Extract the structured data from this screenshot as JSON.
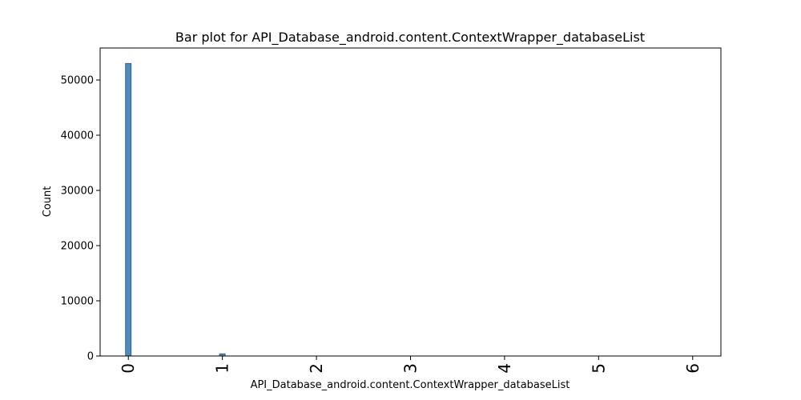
{
  "chart_data": {
    "type": "bar",
    "title": "Bar plot for API_Database_android.content.ContextWrapper_databaseList",
    "xlabel": "API_Database_android.content.ContextWrapper_databaseList",
    "ylabel": "Count",
    "x": [
      0,
      1
    ],
    "values": [
      53000,
      400
    ],
    "bar_width": 0.06,
    "xlim": [
      -0.3,
      6.3
    ],
    "ylim": [
      0,
      55800
    ],
    "xticks": [
      "0",
      "1",
      "2",
      "3",
      "4",
      "5",
      "6"
    ],
    "yticks": [
      "0",
      "10000",
      "20000",
      "30000",
      "40000",
      "50000"
    ],
    "grid": false,
    "bar_color": "#4c8cbf",
    "bar_edge_color": "#2f4f6f"
  }
}
